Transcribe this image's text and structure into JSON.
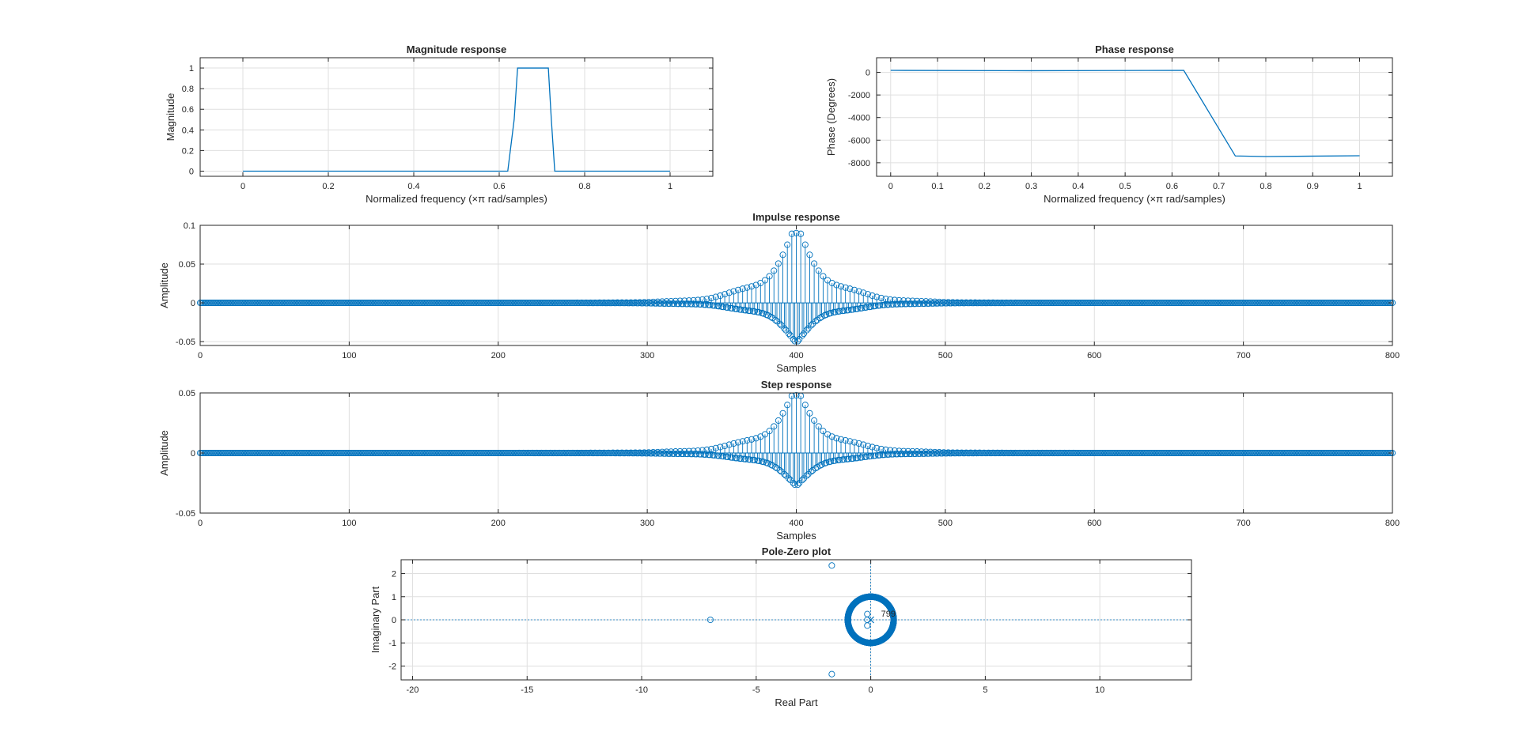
{
  "figure": {
    "background": "#ffffff",
    "series_color": "#0072BD",
    "axis_color": "#262626",
    "grid_color": "#dfdfdf"
  },
  "chart_data": [
    {
      "id": "magnitude",
      "type": "line",
      "title": "Magnitude response",
      "xlabel": "Normalized frequency (×π rad/samples)",
      "ylabel": "Magnitude",
      "xlim": [
        -0.1,
        1.1
      ],
      "ylim": [
        -0.05,
        1.1
      ],
      "xticks": [
        0,
        0.2,
        0.4,
        0.6,
        0.8,
        1
      ],
      "xticklabels": [
        "0",
        "0.2",
        "0.4",
        "0.6",
        "0.8",
        "1"
      ],
      "yticks": [
        0,
        0.2,
        0.4,
        0.6,
        0.8,
        1
      ],
      "yticklabels": [
        "0",
        "0.2",
        "0.4",
        "0.6",
        "0.8",
        "1"
      ],
      "grid": true,
      "x": [
        0,
        0.62,
        0.635,
        0.643,
        0.715,
        0.722,
        0.73,
        1
      ],
      "y": [
        0,
        0,
        0.5,
        1,
        1,
        0.5,
        0,
        0
      ]
    },
    {
      "id": "phase",
      "type": "line",
      "title": "Phase response",
      "xlabel": "Normalized frequency (×π rad/samples)",
      "ylabel": "Phase (Degrees)",
      "xlim": [
        -0.03,
        1.07
      ],
      "ylim": [
        -9200,
        1300
      ],
      "xticks": [
        0,
        0.1,
        0.2,
        0.3,
        0.4,
        0.5,
        0.6,
        0.7,
        0.8,
        0.9,
        1
      ],
      "xticklabels": [
        "0",
        "0.1",
        "0.2",
        "0.3",
        "0.4",
        "0.5",
        "0.6",
        "0.7",
        "0.8",
        "0.9",
        "1"
      ],
      "yticks": [
        0,
        -2000,
        -4000,
        -6000,
        -8000
      ],
      "yticklabels": [
        "0",
        "-2000",
        "-4000",
        "-6000",
        "-8000"
      ],
      "grid": true,
      "x": [
        0,
        0.3,
        0.625,
        0.735,
        0.8,
        1
      ],
      "y": [
        180,
        150,
        180,
        -7400,
        -7450,
        -7380
      ]
    },
    {
      "id": "impulse",
      "type": "stem",
      "title": "Impulse response",
      "xlabel": "Samples",
      "ylabel": "Amplitude",
      "xlim": [
        0,
        800
      ],
      "ylim": [
        -0.055,
        0.1
      ],
      "xticks": [
        0,
        100,
        200,
        300,
        400,
        500,
        600,
        700,
        800
      ],
      "xticklabels": [
        "0",
        "100",
        "200",
        "300",
        "400",
        "500",
        "600",
        "700",
        "800"
      ],
      "yticks": [
        -0.05,
        0,
        0.05,
        0.1
      ],
      "yticklabels": [
        "-0.05",
        "0",
        "0.05",
        "0.1"
      ],
      "grid": true,
      "n_samples": 801,
      "center": 400,
      "peak": 0.09,
      "main_lobe_halfwidth": 14,
      "oscillation_period": 3.0,
      "envelope_decay": 1.55
    },
    {
      "id": "step",
      "type": "stem",
      "title": "Step response",
      "xlabel": "Samples",
      "ylabel": "Amplitude",
      "xlim": [
        0,
        800
      ],
      "ylim": [
        -0.05,
        0.05
      ],
      "xticks": [
        0,
        100,
        200,
        300,
        400,
        500,
        600,
        700,
        800
      ],
      "xticklabels": [
        "0",
        "100",
        "200",
        "300",
        "400",
        "500",
        "600",
        "700",
        "800"
      ],
      "yticks": [
        -0.05,
        0,
        0.05
      ],
      "yticklabels": [
        "-0.05",
        "0",
        "0.05"
      ],
      "grid": true,
      "n_samples": 801,
      "center": 400,
      "peak": 0.048,
      "main_lobe_halfwidth": 14,
      "oscillation_period": 3.0,
      "envelope_decay": 1.55
    },
    {
      "id": "polezero",
      "type": "scatter",
      "title": "Pole-Zero plot",
      "xlabel": "Real Part",
      "ylabel": "Imaginary Part",
      "xlim": [
        -20.5,
        14
      ],
      "ylim": [
        -2.6,
        2.6
      ],
      "xticks": [
        -20,
        -15,
        -10,
        -5,
        0,
        5,
        10
      ],
      "xticklabels": [
        "-20",
        "-15",
        "-10",
        "-5",
        "0",
        "5",
        "10"
      ],
      "yticks": [
        2,
        1,
        0,
        -1,
        -2
      ],
      "yticklabels": [
        "2",
        "1",
        "0",
        "-1",
        "-2"
      ],
      "grid": true,
      "unit_circle_zeros": 796,
      "zeros": [
        [
          -1.7,
          2.35
        ],
        [
          -1.7,
          -2.35
        ],
        [
          -7.0,
          0
        ],
        [
          -0.15,
          0.25
        ],
        [
          -0.15,
          0
        ],
        [
          -0.15,
          -0.25
        ]
      ],
      "pole": [
        0,
        0
      ],
      "pole_label": "799"
    }
  ]
}
